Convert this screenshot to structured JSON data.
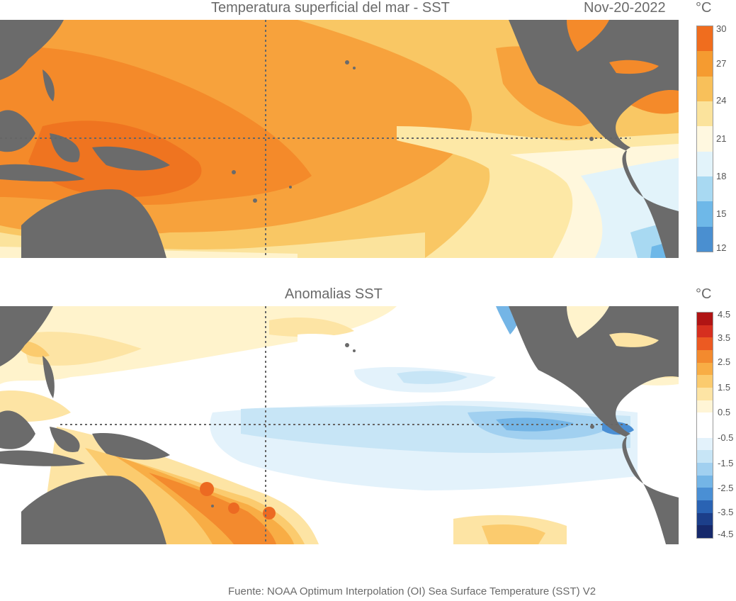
{
  "sst": {
    "title": "Temperatura superficial del mar - SST",
    "date": "Nov-20-2022",
    "unit": "°C",
    "ticks": [
      "30",
      "27",
      "24",
      "21",
      "18",
      "15",
      "12"
    ],
    "colors": [
      "#f06d1e",
      "#f59b30",
      "#f8c05a",
      "#fbe39c",
      "#fff8e0",
      "#e2f3fa",
      "#a8d9f2",
      "#6eb8e8",
      "#4a8fd0"
    ]
  },
  "anomaly": {
    "title": "Anomalias SST",
    "unit": "°C",
    "ticks": [
      "4.5",
      "3.5",
      "2.5",
      "1.5",
      "0.5",
      "-0.5",
      "-1.5",
      "-2.5",
      "-3.5",
      "-4.5"
    ],
    "colors": [
      "#b01414",
      "#d62f1f",
      "#ec5a22",
      "#f38a2e",
      "#f8ad45",
      "#fbcb6e",
      "#fde4a4",
      "#fff5d6",
      "#ffffff",
      "#ffffff",
      "#e3f2fb",
      "#c7e5f6",
      "#a1d0f0",
      "#74b5e6",
      "#4a8fd4",
      "#2a63b3",
      "#1c3f8a",
      "#16296b"
    ]
  },
  "footer": "Fuente: NOAA Optimum Interpolation (OI) Sea Surface Temperature (SST) V2"
}
